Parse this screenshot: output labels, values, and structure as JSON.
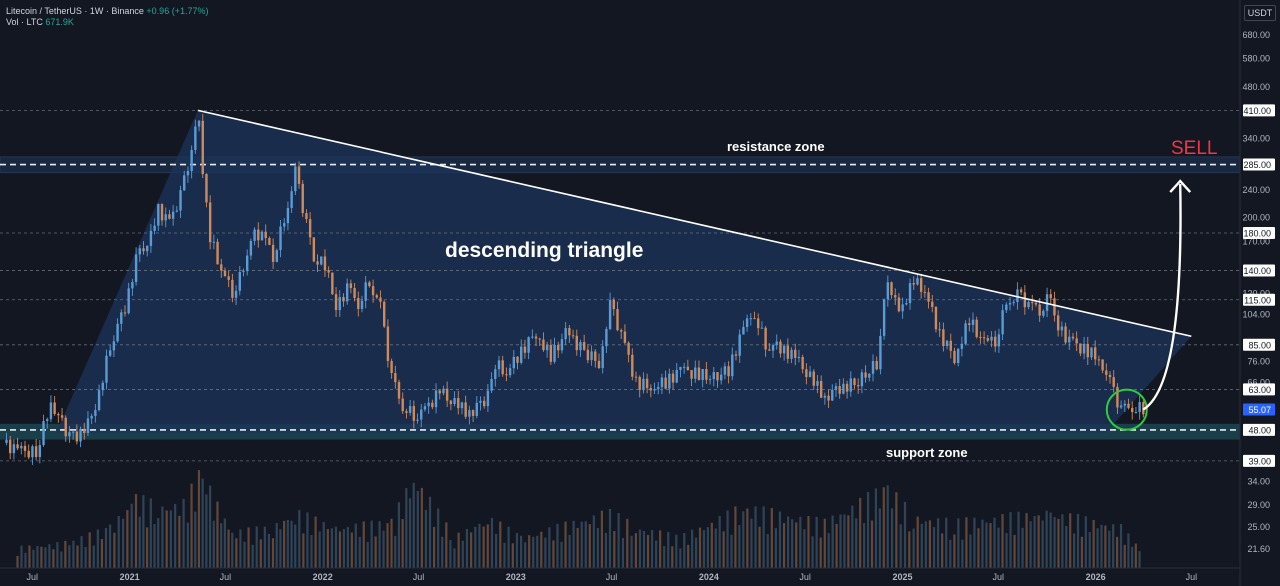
{
  "header": {
    "symbol_line": "Litecoin / TetherUS · 1W · Binance",
    "change": "+0.96 (+1.77%)",
    "vol_label": "Vol · LTC",
    "vol_value": "671.9K"
  },
  "currency_button": "USDT",
  "colors": {
    "background": "#131722",
    "bull": "#5b9bd5",
    "bear": "#d08a5a",
    "triangle_fill": "#1c3459",
    "zone_fill": "#1e4a55",
    "trendline": "#ffffff",
    "sell": "#f23645",
    "circle": "#2ecc40"
  },
  "chart_data": {
    "type": "candlestick",
    "symbol": "LTCUSDT",
    "interval": "1W",
    "y_scale": "log",
    "ylim": [
      19,
      860
    ],
    "x_range": [
      "2020-05-01",
      "2026-10-01"
    ],
    "y_tick_labels": [
      "680.00",
      "580.00",
      "480.00",
      "340.00",
      "240.00",
      "200.00",
      "170.00",
      "120.00",
      "104.00",
      "76.00",
      "66.00",
      "34.00",
      "29.00",
      "25.00",
      "21.60"
    ],
    "x_tick_labels": [
      {
        "label": "Jul",
        "date": "2020-07-01"
      },
      {
        "label": "2021",
        "date": "2021-01-01"
      },
      {
        "label": "Jul",
        "date": "2021-07-01"
      },
      {
        "label": "2022",
        "date": "2022-01-01"
      },
      {
        "label": "Jul",
        "date": "2022-07-01"
      },
      {
        "label": "2023",
        "date": "2023-01-01"
      },
      {
        "label": "Jul",
        "date": "2023-07-01"
      },
      {
        "label": "2024",
        "date": "2024-01-01"
      },
      {
        "label": "Jul",
        "date": "2024-07-01"
      },
      {
        "label": "2025",
        "date": "2025-01-01"
      },
      {
        "label": "Jul",
        "date": "2025-07-01"
      },
      {
        "label": "2026",
        "date": "2026-01-01"
      },
      {
        "label": "Jul",
        "date": "2026-07-01"
      }
    ],
    "price_levels": [
      {
        "label": "410.00",
        "value": 410
      },
      {
        "label": "285.00",
        "value": 285
      },
      {
        "label": "180.00",
        "value": 180
      },
      {
        "label": "140.00",
        "value": 140
      },
      {
        "label": "115.00",
        "value": 115
      },
      {
        "label": "85.00",
        "value": 85
      },
      {
        "label": "63.00",
        "value": 63
      },
      {
        "label": "48.00",
        "value": 48
      },
      {
        "label": "39.00",
        "value": 39
      }
    ],
    "last_price": {
      "label": "55.07",
      "value": 55.07
    },
    "close_series": [
      [
        "2020-05-04",
        44
      ],
      [
        "2020-06-01",
        42
      ],
      [
        "2020-07-06",
        41
      ],
      [
        "2020-08-03",
        58
      ],
      [
        "2020-09-07",
        46
      ],
      [
        "2020-10-05",
        47
      ],
      [
        "2020-11-02",
        60
      ],
      [
        "2020-11-23",
        85
      ],
      [
        "2020-12-21",
        110
      ],
      [
        "2021-01-11",
        150
      ],
      [
        "2021-02-08",
        175
      ],
      [
        "2021-02-22",
        210
      ],
      [
        "2021-03-15",
        195
      ],
      [
        "2021-04-05",
        230
      ],
      [
        "2021-04-19",
        280
      ],
      [
        "2021-05-10",
        400
      ],
      [
        "2021-05-17",
        280
      ],
      [
        "2021-05-31",
        175
      ],
      [
        "2021-06-21",
        140
      ],
      [
        "2021-07-12",
        122
      ],
      [
        "2021-08-02",
        140
      ],
      [
        "2021-08-16",
        175
      ],
      [
        "2021-09-06",
        180
      ],
      [
        "2021-09-27",
        155
      ],
      [
        "2021-10-18",
        195
      ],
      [
        "2021-11-08",
        270
      ],
      [
        "2021-11-22",
        215
      ],
      [
        "2021-12-13",
        155
      ],
      [
        "2022-01-10",
        140
      ],
      [
        "2022-01-24",
        108
      ],
      [
        "2022-02-14",
        125
      ],
      [
        "2022-03-07",
        112
      ],
      [
        "2022-03-28",
        130
      ],
      [
        "2022-04-18",
        110
      ],
      [
        "2022-05-09",
        68
      ],
      [
        "2022-05-30",
        56
      ],
      [
        "2022-06-20",
        53
      ],
      [
        "2022-07-11",
        55
      ],
      [
        "2022-08-08",
        62
      ],
      [
        "2022-09-05",
        57
      ],
      [
        "2022-10-03",
        54
      ],
      [
        "2022-11-07",
        60
      ],
      [
        "2022-11-21",
        75
      ],
      [
        "2022-12-12",
        70
      ],
      [
        "2023-01-09",
        82
      ],
      [
        "2023-02-06",
        92
      ],
      [
        "2023-03-06",
        78
      ],
      [
        "2023-04-03",
        92
      ],
      [
        "2023-05-08",
        82
      ],
      [
        "2023-06-05",
        75
      ],
      [
        "2023-06-26",
        110
      ],
      [
        "2023-07-17",
        92
      ],
      [
        "2023-08-14",
        66
      ],
      [
        "2023-09-11",
        64
      ],
      [
        "2023-10-09",
        66
      ],
      [
        "2023-11-06",
        72
      ],
      [
        "2023-12-04",
        70
      ],
      [
        "2024-01-08",
        68
      ],
      [
        "2024-02-05",
        72
      ],
      [
        "2024-03-04",
        95
      ],
      [
        "2024-03-25",
        105
      ],
      [
        "2024-04-15",
        85
      ],
      [
        "2024-05-13",
        84
      ],
      [
        "2024-06-10",
        78
      ],
      [
        "2024-07-08",
        68
      ],
      [
        "2024-08-05",
        60
      ],
      [
        "2024-09-02",
        64
      ],
      [
        "2024-10-07",
        66
      ],
      [
        "2024-11-11",
        75
      ],
      [
        "2024-12-02",
        135
      ],
      [
        "2024-12-23",
        105
      ],
      [
        "2025-01-20",
        130
      ],
      [
        "2025-02-10",
        122
      ],
      [
        "2025-03-10",
        92
      ],
      [
        "2025-04-07",
        78
      ],
      [
        "2025-05-05",
        100
      ],
      [
        "2025-06-02",
        86
      ],
      [
        "2025-06-23",
        88
      ],
      [
        "2025-07-14",
        112
      ],
      [
        "2025-08-04",
        118
      ],
      [
        "2025-08-25",
        112
      ],
      [
        "2025-09-15",
        108
      ],
      [
        "2025-10-06",
        118
      ],
      [
        "2025-10-20",
        95
      ],
      [
        "2025-11-10",
        88
      ],
      [
        "2025-12-08",
        82
      ],
      [
        "2026-01-05",
        78
      ],
      [
        "2026-01-26",
        66
      ],
      [
        "2026-02-16",
        55
      ],
      [
        "2026-03-09",
        56
      ],
      [
        "2026-03-30",
        55.07
      ]
    ],
    "volume_series": [
      [
        "2020-06-01",
        0.2
      ],
      [
        "2020-09-07",
        0.25
      ],
      [
        "2020-11-23",
        0.4
      ],
      [
        "2021-01-11",
        0.7
      ],
      [
        "2021-02-22",
        0.6
      ],
      [
        "2021-04-19",
        0.65
      ],
      [
        "2021-05-10",
        1.0
      ],
      [
        "2021-05-31",
        0.75
      ],
      [
        "2021-07-12",
        0.35
      ],
      [
        "2021-09-27",
        0.4
      ],
      [
        "2021-11-08",
        0.55
      ],
      [
        "2022-01-24",
        0.4
      ],
      [
        "2022-05-09",
        0.45
      ],
      [
        "2022-06-20",
        0.9
      ],
      [
        "2022-09-05",
        0.3
      ],
      [
        "2022-11-07",
        0.5
      ],
      [
        "2023-01-09",
        0.3
      ],
      [
        "2023-06-26",
        0.55
      ],
      [
        "2023-08-14",
        0.4
      ],
      [
        "2023-11-06",
        0.3
      ],
      [
        "2024-03-04",
        0.6
      ],
      [
        "2024-08-05",
        0.45
      ],
      [
        "2024-12-02",
        0.8
      ],
      [
        "2025-01-20",
        0.5
      ],
      [
        "2025-04-07",
        0.45
      ],
      [
        "2025-10-06",
        0.55
      ],
      [
        "2026-02-16",
        0.4
      ],
      [
        "2026-03-30",
        0.15
      ]
    ],
    "annotations": {
      "pattern": "descending triangle",
      "resistance": "resistance zone",
      "support": "support zone",
      "signal": "SELL"
    },
    "trendline": {
      "from": [
        "2021-05-10",
        410
      ],
      "to": [
        "2026-07-01",
        90
      ]
    },
    "support_band": [
      45,
      50
    ],
    "resistance_band": [
      270,
      300
    ],
    "triangle": [
      [
        "2020-08-15",
        47
      ],
      [
        "2021-05-10",
        410
      ],
      [
        "2026-07-01",
        90
      ],
      [
        "2026-01-20",
        47
      ]
    ],
    "projection": [
      [
        "2026-04-01",
        55
      ],
      [
        "2026-05-10",
        85
      ],
      [
        "2026-06-10",
        250
      ]
    ],
    "grid": false,
    "legend": "none"
  }
}
